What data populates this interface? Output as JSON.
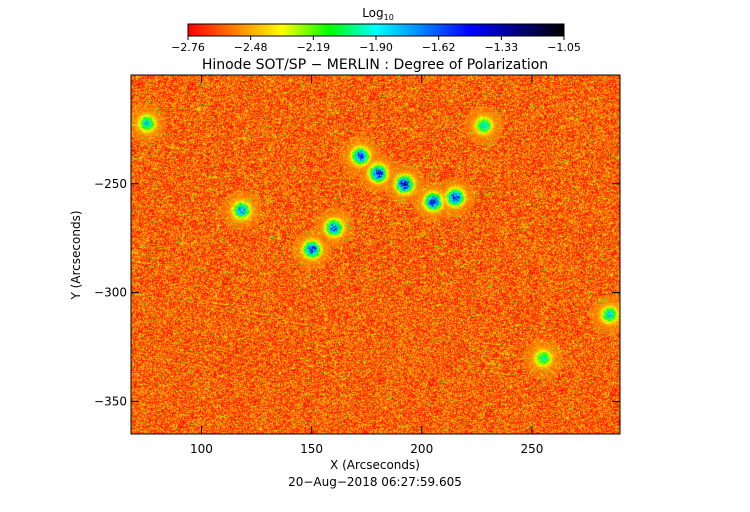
{
  "chart_data": {
    "type": "heatmap",
    "title": "Hinode SOT/SP − MERLIN : Degree of Polarization",
    "xlabel": "X (Arcseconds)",
    "ylabel": "Y (Arcseconds)",
    "timestamp": "20−Aug−2018 06:27:59.605",
    "colorbar": {
      "label": "Log",
      "label_subscript": "10",
      "ticks": [
        "−2.76",
        "−2.48",
        "−2.19",
        "−1.90",
        "−1.62",
        "−1.33",
        "−1.05"
      ],
      "range": [
        -2.76,
        -1.05
      ],
      "colormap": [
        "#ff0000",
        "#ff8000",
        "#ffff00",
        "#00ff00",
        "#00ffff",
        "#0080ff",
        "#0000ff",
        "#000080",
        "#000000"
      ]
    },
    "xlim": [
      68,
      290
    ],
    "ylim": [
      -365,
      -200
    ],
    "x_ticks": [
      {
        "value": 100,
        "label": "100"
      },
      {
        "value": 150,
        "label": "150"
      },
      {
        "value": 200,
        "label": "200"
      },
      {
        "value": 250,
        "label": "250"
      }
    ],
    "y_ticks": [
      {
        "value": -250,
        "label": "−250"
      },
      {
        "value": -300,
        "label": "−300"
      },
      {
        "value": -350,
        "label": "−350"
      }
    ],
    "background_level": -2.6,
    "enhanced_regions": [
      {
        "x": 172,
        "y": -237,
        "peak": -1.4
      },
      {
        "x": 180,
        "y": -245,
        "peak": -1.3
      },
      {
        "x": 192,
        "y": -250,
        "peak": -1.25
      },
      {
        "x": 205,
        "y": -258,
        "peak": -1.3
      },
      {
        "x": 215,
        "y": -256,
        "peak": -1.35
      },
      {
        "x": 150,
        "y": -280,
        "peak": -1.4
      },
      {
        "x": 160,
        "y": -270,
        "peak": -1.5
      },
      {
        "x": 118,
        "y": -262,
        "peak": -1.6
      },
      {
        "x": 228,
        "y": -223,
        "peak": -1.8
      },
      {
        "x": 75,
        "y": -222,
        "peak": -1.8
      },
      {
        "x": 285,
        "y": -310,
        "peak": -1.8
      },
      {
        "x": 255,
        "y": -330,
        "peak": -1.9
      }
    ]
  }
}
